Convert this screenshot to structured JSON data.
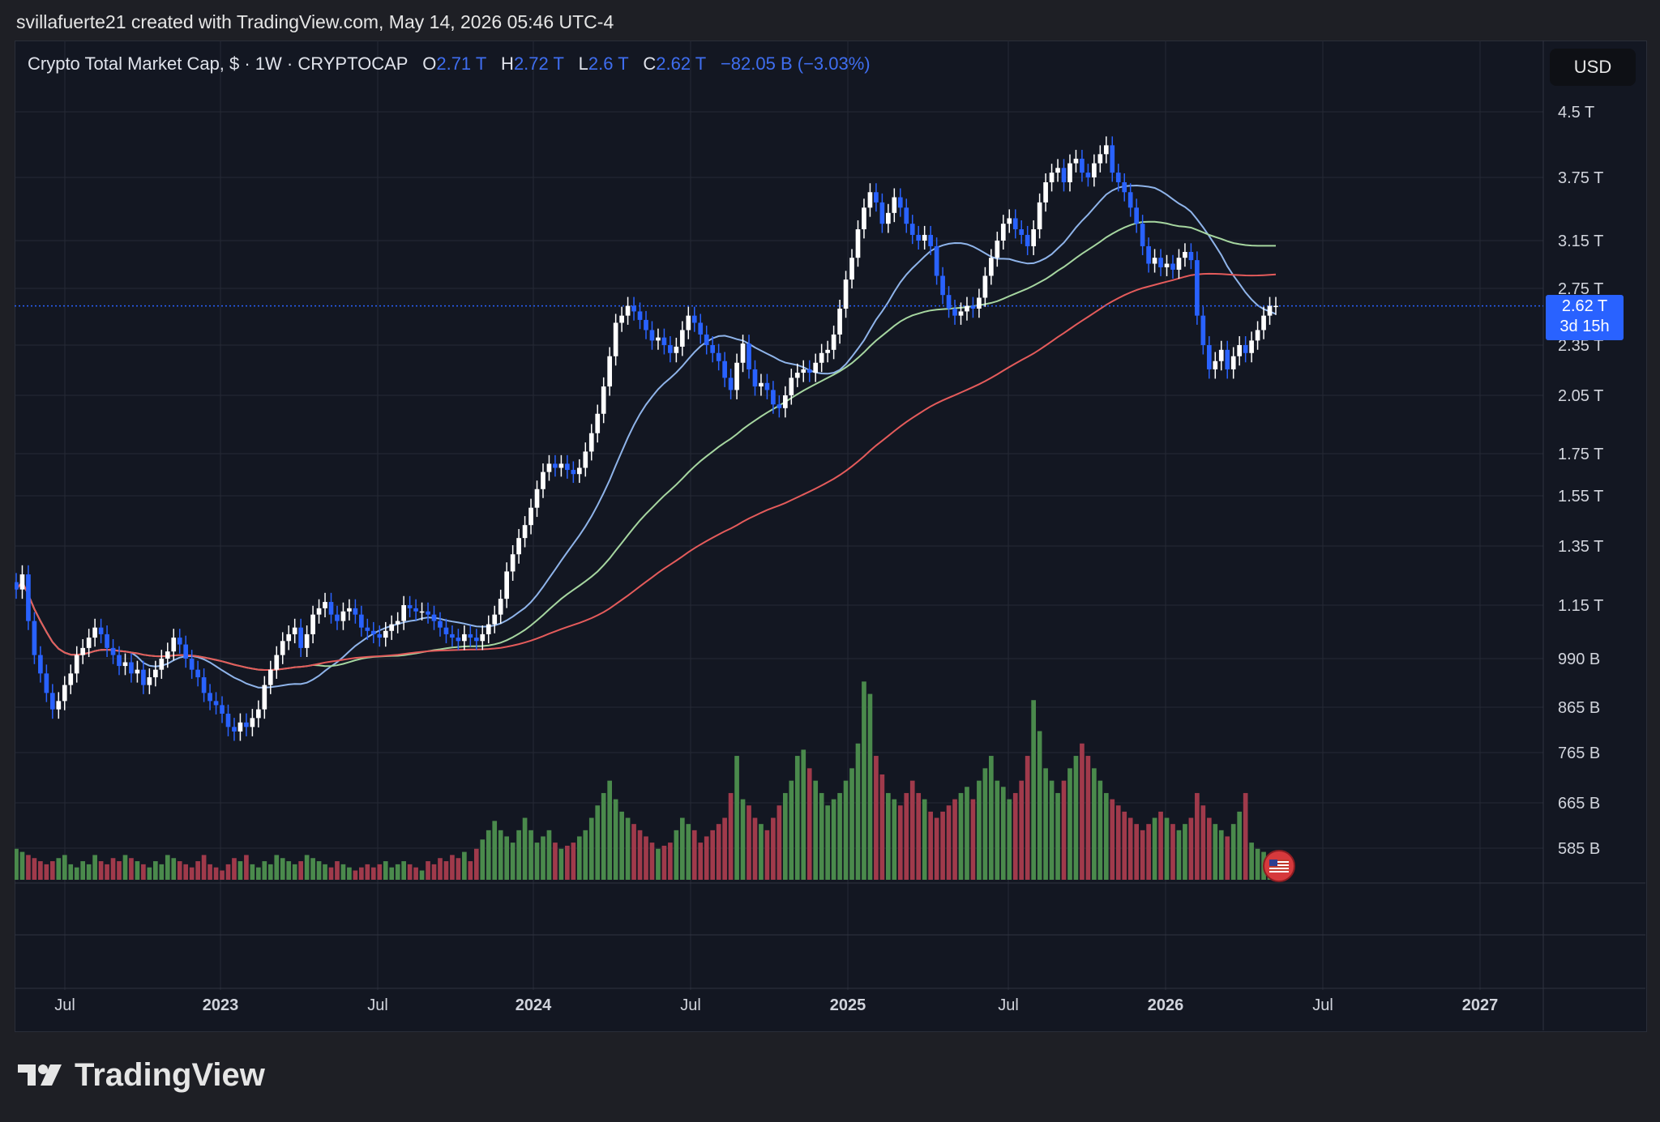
{
  "header": {
    "credit": "svillafuerte21 created with TradingView.com, May 14, 2026 05:46 UTC-4"
  },
  "legend": {
    "symbol": "Crypto Total Market Cap, $ · 1W · CRYPTOCAP",
    "o_label": "O",
    "o_value": "2.71 T",
    "h_label": "H",
    "h_value": "2.72 T",
    "l_label": "L",
    "l_value": "2.6 T",
    "c_label": "C",
    "c_value": "2.62 T",
    "change": "−82.05 B (−3.03%)"
  },
  "currency_button": "USD",
  "price_tag": {
    "price": "2.62 T",
    "countdown": "3d 15h"
  },
  "footer": {
    "brand": "TradingView"
  },
  "colors": {
    "background": "#131722",
    "up_candle": "#ffffff",
    "down_candle": "#2962ff",
    "volume_up": "#4a8a4c",
    "volume_down": "#a03a4b",
    "ma_blue": "#8fb4ea",
    "ma_green": "#a6d6a0",
    "ma_red": "#e45b5b",
    "price_line": "#2962ff"
  },
  "chart_data": {
    "type": "candlestick",
    "title": "Crypto Total Market Cap, $ · 1W · CRYPTOCAP",
    "y_scale": "log",
    "y_ticks": [
      "4.5 T",
      "3.75 T",
      "3.15 T",
      "2.75 T",
      "2.35 T",
      "2.05 T",
      "1.75 T",
      "1.55 T",
      "1.35 T",
      "1.15 T",
      "990 B",
      "865 B",
      "765 B",
      "665 B",
      "585 B"
    ],
    "x_ticks": [
      "Jul",
      "2023",
      "Jul",
      "2024",
      "Jul",
      "2025",
      "Jul",
      "2026",
      "Jul",
      "2027"
    ],
    "grid": true,
    "last_price": "2.62 T",
    "candles_close_T": [
      1.2,
      1.25,
      1.1,
      1.0,
      0.95,
      0.9,
      0.86,
      0.88,
      0.92,
      0.95,
      1.0,
      1.02,
      1.05,
      1.08,
      1.06,
      1.02,
      1.0,
      0.97,
      0.98,
      0.95,
      0.96,
      0.92,
      0.94,
      0.96,
      0.99,
      1.01,
      1.05,
      1.03,
      0.99,
      0.96,
      0.94,
      0.9,
      0.88,
      0.87,
      0.85,
      0.82,
      0.81,
      0.83,
      0.82,
      0.84,
      0.86,
      0.92,
      0.96,
      1.0,
      1.04,
      1.06,
      1.08,
      1.02,
      1.06,
      1.12,
      1.14,
      1.16,
      1.12,
      1.1,
      1.13,
      1.14,
      1.12,
      1.08,
      1.07,
      1.06,
      1.05,
      1.07,
      1.09,
      1.1,
      1.15,
      1.14,
      1.13,
      1.13,
      1.12,
      1.1,
      1.08,
      1.06,
      1.05,
      1.04,
      1.06,
      1.05,
      1.04,
      1.06,
      1.09,
      1.12,
      1.17,
      1.26,
      1.32,
      1.38,
      1.43,
      1.5,
      1.58,
      1.66,
      1.7,
      1.68,
      1.7,
      1.67,
      1.65,
      1.68,
      1.76,
      1.85,
      1.95,
      2.1,
      2.28,
      2.5,
      2.55,
      2.62,
      2.58,
      2.52,
      2.45,
      2.38,
      2.4,
      2.35,
      2.3,
      2.34,
      2.45,
      2.55,
      2.5,
      2.42,
      2.35,
      2.3,
      2.25,
      2.15,
      2.08,
      2.24,
      2.36,
      2.2,
      2.1,
      2.12,
      2.08,
      2.0,
      1.98,
      2.05,
      2.15,
      2.18,
      2.2,
      2.18,
      2.24,
      2.3,
      2.32,
      2.42,
      2.6,
      2.82,
      3.0,
      3.25,
      3.45,
      3.6,
      3.5,
      3.3,
      3.4,
      3.55,
      3.45,
      3.3,
      3.2,
      3.15,
      3.2,
      3.1,
      2.85,
      2.7,
      2.6,
      2.55,
      2.58,
      2.62,
      2.6,
      2.68,
      2.85,
      3.0,
      3.15,
      3.3,
      3.35,
      3.25,
      3.2,
      3.1,
      3.25,
      3.5,
      3.7,
      3.8,
      3.85,
      3.7,
      3.9,
      3.95,
      3.8,
      3.75,
      3.9,
      4.0,
      4.1,
      3.8,
      3.7,
      3.6,
      3.45,
      3.3,
      3.1,
      2.95,
      3.0,
      2.92,
      2.95,
      2.9,
      3.0,
      3.05,
      2.98,
      2.55,
      2.35,
      2.2,
      2.25,
      2.32,
      2.2,
      2.28,
      2.35,
      2.3,
      2.38,
      2.45,
      2.55,
      2.62,
      2.62
    ],
    "volume_B": [
      610,
      605,
      600,
      595,
      590,
      585,
      590,
      595,
      600,
      585,
      580,
      590,
      585,
      600,
      590,
      585,
      595,
      590,
      600,
      595,
      590,
      585,
      580,
      590,
      585,
      600,
      595,
      590,
      585,
      580,
      590,
      600,
      585,
      580,
      575,
      585,
      595,
      590,
      600,
      585,
      580,
      590,
      585,
      600,
      595,
      590,
      585,
      590,
      600,
      595,
      590,
      585,
      580,
      590,
      585,
      580,
      575,
      580,
      585,
      580,
      585,
      590,
      580,
      585,
      590,
      585,
      580,
      575,
      590,
      585,
      595,
      590,
      600,
      595,
      605,
      590,
      610,
      625,
      640,
      655,
      640,
      630,
      620,
      640,
      660,
      640,
      620,
      630,
      640,
      620,
      610,
      615,
      620,
      630,
      640,
      660,
      680,
      700,
      720,
      690,
      670,
      660,
      650,
      640,
      630,
      620,
      610,
      615,
      620,
      640,
      660,
      650,
      640,
      620,
      630,
      640,
      650,
      660,
      700,
      760,
      690,
      680,
      660,
      650,
      640,
      660,
      680,
      700,
      720,
      760,
      770,
      740,
      720,
      700,
      680,
      690,
      700,
      720,
      740,
      780,
      880,
      860,
      760,
      730,
      700,
      690,
      680,
      700,
      720,
      700,
      690,
      670,
      660,
      670,
      680,
      690,
      700,
      710,
      690,
      720,
      740,
      760,
      720,
      710,
      690,
      700,
      720,
      760,
      850,
      800,
      740,
      720,
      700,
      720,
      740,
      760,
      780,
      760,
      740,
      720,
      700,
      690,
      680,
      670,
      660,
      650,
      640,
      650,
      660,
      670,
      660,
      650,
      640,
      650,
      660,
      700,
      680,
      660,
      650,
      640,
      630,
      650,
      670,
      700,
      620,
      610,
      605,
      600,
      600
    ]
  }
}
